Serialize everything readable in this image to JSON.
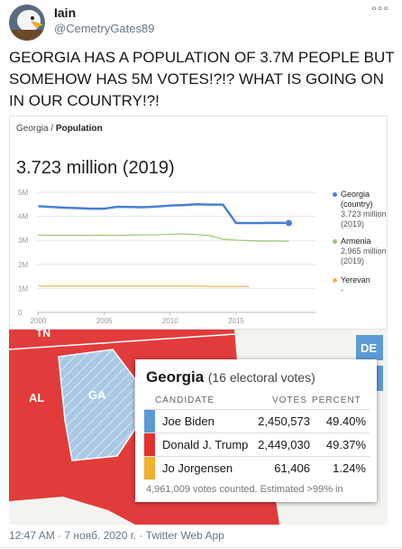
{
  "tweet": {
    "name": "Iain",
    "handle": "@CemetryGates89",
    "text": "GEORGIA HAS A POPULATION OF 3.7M PEOPLE BUT SOMEHOW HAS 5M VOTES!?!? WHAT IS GOING ON IN OUR COUNTRY!?!",
    "timestamp": "12:47 AM · 7 нояб. 2020 г. · Twitter Web App"
  },
  "breadcrumb": [
    "Georgia",
    "Population"
  ],
  "chart_data": {
    "type": "line",
    "title": "3.723 million (2019)",
    "x": [
      2000,
      2001,
      2002,
      2003,
      2004,
      2005,
      2006,
      2007,
      2008,
      2009,
      2010,
      2011,
      2012,
      2013,
      2014,
      2015,
      2016,
      2017,
      2018,
      2019
    ],
    "series": [
      {
        "name": "Georgia (country)",
        "note": [
          "3.723 million",
          "(2019)"
        ],
        "color": "#4a7fd6",
        "values": [
          4.42,
          4.39,
          4.36,
          4.34,
          4.32,
          4.32,
          4.4,
          4.39,
          4.38,
          4.41,
          4.45,
          4.47,
          4.5,
          4.49,
          4.49,
          3.72,
          3.72,
          3.72,
          3.73,
          3.723
        ]
      },
      {
        "name": "Armenia",
        "note": [
          "2.965 million",
          "(2019)"
        ],
        "color": "#9bc972",
        "values": [
          3.22,
          3.21,
          3.21,
          3.21,
          3.21,
          3.22,
          3.21,
          3.22,
          3.23,
          3.23,
          3.25,
          3.27,
          3.24,
          3.2,
          3.05,
          3.01,
          2.99,
          2.97,
          2.97,
          2.965
        ]
      },
      {
        "name": "Yerevan",
        "note": [
          "-"
        ],
        "color": "#f0b55a",
        "values": [
          1.1,
          1.1,
          1.1,
          1.1,
          1.1,
          1.1,
          1.1,
          1.1,
          1.1,
          1.1,
          1.1,
          1.1,
          1.1,
          1.08,
          1.08,
          1.08,
          1.08,
          null,
          null,
          null
        ]
      }
    ],
    "xlim": [
      1999.9,
      2020.4
    ],
    "xticks": [
      2000,
      2005,
      2010,
      2015
    ],
    "ylim": [
      0,
      5
    ],
    "yticks": [
      0,
      {
        "value": 1,
        "label": "1M"
      },
      {
        "value": 2,
        "label": "2M"
      },
      {
        "value": 3,
        "label": "3M"
      },
      {
        "value": 4,
        "label": "4M"
      },
      {
        "value": 5,
        "label": "5M"
      }
    ],
    "grid": true
  },
  "map": {
    "labels": [
      "TN",
      "AL",
      "GA",
      "DE"
    ]
  },
  "election": {
    "state": "Georgia",
    "electoral": "(16 electoral votes)",
    "headers": [
      "CANDIDATE",
      "VOTES",
      "PERCENT"
    ],
    "rows": [
      {
        "candidate": "Joe Biden",
        "votes": "2,450,573",
        "percent": "49.40%",
        "color": "#5b9bd5"
      },
      {
        "candidate": "Donald J. Trump",
        "votes": "2,449,030",
        "percent": "49.37%",
        "color": "#e03030"
      },
      {
        "candidate": "Jo Jorgensen",
        "votes": "61,406",
        "percent": "1.24%",
        "color": "#f0b030"
      }
    ],
    "footer": "4,961,009 votes counted. Estimated >99% in"
  }
}
